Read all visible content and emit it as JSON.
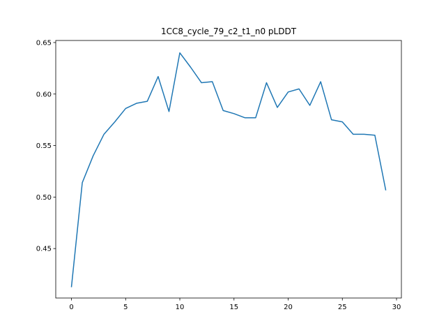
{
  "chart_data": {
    "type": "line",
    "title": "1CC8_cycle_79_c2_t1_n0 pLDDT",
    "xlabel": "",
    "ylabel": "",
    "xlim": [
      -1.45,
      30.45
    ],
    "ylim": [
      0.402,
      0.652
    ],
    "xticks": [
      0,
      5,
      10,
      15,
      20,
      25,
      30
    ],
    "yticks": [
      0.45,
      0.5,
      0.55,
      0.6,
      0.65
    ],
    "ytick_labels": [
      "0.45",
      "0.50",
      "0.55",
      "0.60",
      "0.65"
    ],
    "grid": false,
    "legend": "none",
    "series": [
      {
        "color": "#1f77b4",
        "x": [
          0,
          1,
          2,
          3,
          4,
          5,
          6,
          7,
          8,
          9,
          10,
          11,
          12,
          13,
          14,
          15,
          16,
          17,
          18,
          19,
          20,
          21,
          22,
          23,
          24,
          25,
          26,
          27,
          28,
          29
        ],
        "y": [
          0.413,
          0.514,
          0.54,
          0.561,
          0.573,
          0.586,
          0.591,
          0.593,
          0.617,
          0.583,
          0.64,
          0.626,
          0.611,
          0.612,
          0.584,
          0.581,
          0.577,
          0.577,
          0.611,
          0.587,
          0.602,
          0.605,
          0.589,
          0.612,
          0.575,
          0.573,
          0.561,
          0.561,
          0.56,
          0.507
        ]
      }
    ]
  }
}
